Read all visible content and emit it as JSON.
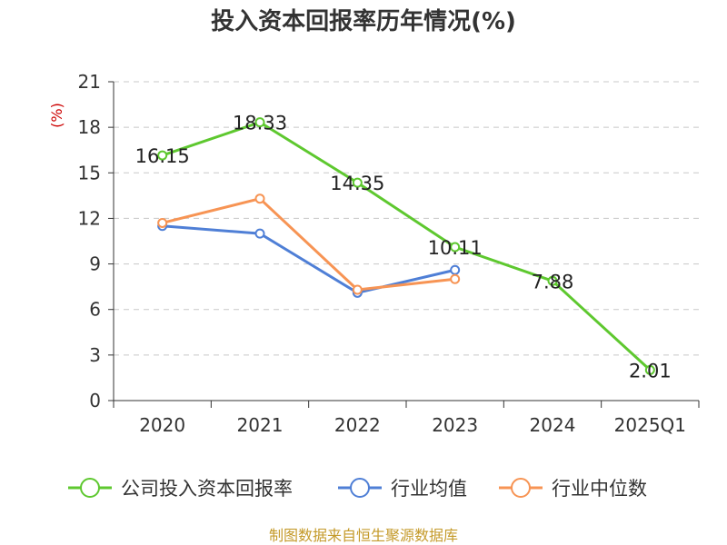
{
  "chart_data": {
    "type": "line",
    "title": "投入资本回报率历年情况(%)",
    "ylabel": "(%)",
    "categories": [
      "2020",
      "2021",
      "2022",
      "2023",
      "2024",
      "2025Q1"
    ],
    "y_ticks": [
      "0",
      "3",
      "6",
      "9",
      "12",
      "15",
      "18",
      "21"
    ],
    "ylim": [
      0,
      21
    ],
    "grid": "horizontal dashed",
    "legend_position": "bottom",
    "series": [
      {
        "name": "公司投入资本回报率",
        "color": "#5ec82f",
        "values": [
          16.15,
          18.33,
          14.35,
          10.11,
          7.88,
          2.01
        ],
        "labels": [
          "16.15",
          "18.33",
          "14.35",
          "10.11",
          "7.88",
          "2.01"
        ]
      },
      {
        "name": "行业均值",
        "color": "#4f7fd6",
        "values": [
          11.5,
          11.0,
          7.1,
          8.6,
          null,
          null
        ]
      },
      {
        "name": "行业中位数",
        "color": "#f79454",
        "values": [
          11.7,
          13.3,
          7.3,
          8.0,
          null,
          null
        ]
      }
    ],
    "source": "制图数据来自恒生聚源数据库"
  }
}
